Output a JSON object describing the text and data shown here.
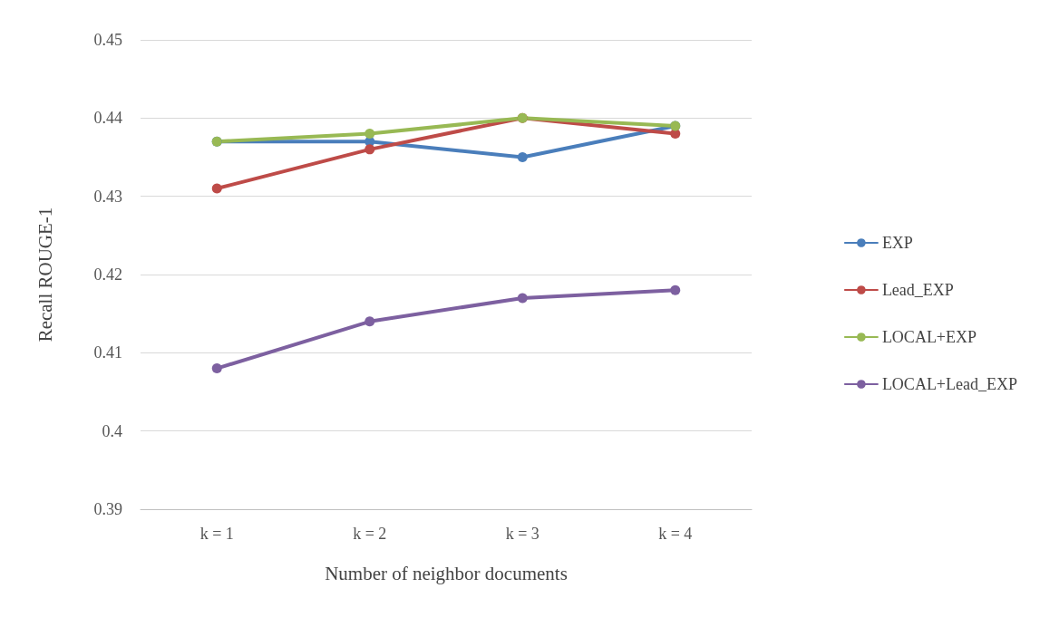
{
  "chart_data": {
    "type": "line",
    "xlabel": "Number of neighbor documents",
    "ylabel": "Recall ROUGE-1",
    "categories": [
      "k = 1",
      "k = 2",
      "k = 3",
      "k = 4"
    ],
    "series": [
      {
        "name": "EXP",
        "color": "#4a7ebb",
        "values": [
          0.437,
          0.437,
          0.435,
          0.439
        ]
      },
      {
        "name": "Lead_EXP",
        "color": "#be4b48",
        "values": [
          0.431,
          0.436,
          0.44,
          0.438
        ]
      },
      {
        "name": "LOCAL+EXP",
        "color": "#98b954",
        "values": [
          0.437,
          0.438,
          0.44,
          0.439
        ]
      },
      {
        "name": "LOCAL+Lead_EXP",
        "color": "#7d60a0",
        "values": [
          0.408,
          0.414,
          0.417,
          0.418
        ]
      }
    ],
    "ylim": [
      0.39,
      0.45
    ],
    "yticks": [
      0.39,
      0.4,
      0.41,
      0.42,
      0.43,
      0.44,
      0.45
    ],
    "grid": "y",
    "legend": "right",
    "marker": "circle",
    "line_style": "solid"
  }
}
